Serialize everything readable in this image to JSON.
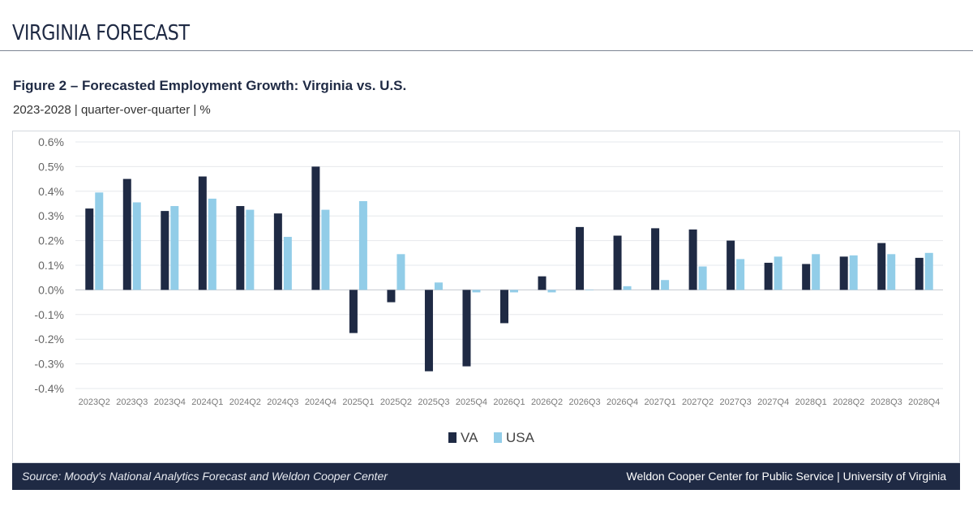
{
  "header": {
    "title": "VIRGINIA FORECAST"
  },
  "figure": {
    "title": "Figure 2 – Forecasted Employment Growth: Virginia vs. U.S.",
    "subtitle": "2023-2028 | quarter-over-quarter | %"
  },
  "footer": {
    "source": "Source: Moody's National Analytics Forecast and Weldon Cooper Center",
    "credit": "Weldon Cooper Center for Public Service | University of Virginia"
  },
  "colors": {
    "va": "#1f2a44",
    "usa": "#92cde8",
    "grid": "#e6e8ec",
    "axis_text": "#666666",
    "footer_bg": "#1f2a44"
  },
  "chart_data": {
    "type": "bar",
    "categories": [
      "2023Q2",
      "2023Q3",
      "2023Q4",
      "2024Q1",
      "2024Q2",
      "2024Q3",
      "2024Q4",
      "2025Q1",
      "2025Q2",
      "2025Q3",
      "2025Q4",
      "2026Q1",
      "2026Q2",
      "2026Q3",
      "2026Q4",
      "2027Q1",
      "2027Q2",
      "2027Q3",
      "2027Q4",
      "2028Q1",
      "2028Q2",
      "2028Q3",
      "2028Q4"
    ],
    "series": [
      {
        "name": "VA",
        "values": [
          0.33,
          0.45,
          0.32,
          0.46,
          0.34,
          0.31,
          0.5,
          -0.175,
          -0.05,
          -0.33,
          -0.31,
          -0.135,
          0.055,
          0.255,
          0.22,
          0.25,
          0.245,
          0.2,
          0.11,
          0.105,
          0.135,
          0.19,
          0.13
        ]
      },
      {
        "name": "USA",
        "values": [
          0.395,
          0.355,
          0.34,
          0.37,
          0.325,
          0.215,
          0.325,
          0.36,
          0.145,
          0.03,
          -0.01,
          -0.01,
          -0.01,
          0.0,
          0.015,
          0.04,
          0.095,
          0.125,
          0.135,
          0.145,
          0.14,
          0.145,
          0.15
        ]
      }
    ],
    "ylim": [
      -0.4,
      0.6
    ],
    "yticks": [
      0.6,
      0.5,
      0.4,
      0.3,
      0.2,
      0.1,
      0.0,
      -0.1,
      -0.2,
      -0.3,
      -0.4
    ],
    "ytick_labels": [
      "0.6%",
      "0.5%",
      "0.4%",
      "0.3%",
      "0.2%",
      "0.1%",
      "0.0%",
      "-0.1%",
      "-0.2%",
      "-0.3%",
      "-0.4%"
    ],
    "grid": true,
    "legend": "bottom-center",
    "xlabel": "",
    "ylabel": ""
  }
}
